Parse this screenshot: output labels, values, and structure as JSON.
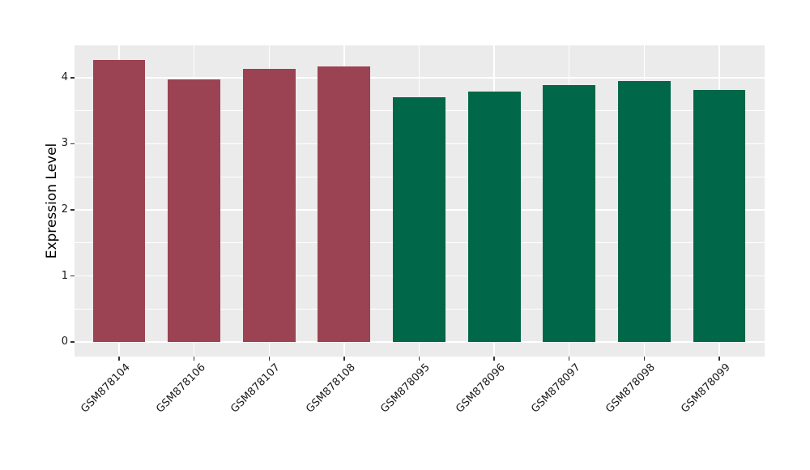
{
  "chart_data": {
    "type": "bar",
    "title": "",
    "xlabel": "",
    "ylabel": "Expression Level",
    "categories": [
      "GSM878104",
      "GSM878106",
      "GSM878107",
      "GSM878108",
      "GSM878095",
      "GSM878096",
      "GSM878097",
      "GSM878098",
      "GSM878099"
    ],
    "values": [
      4.27,
      3.98,
      4.13,
      4.17,
      3.7,
      3.79,
      3.89,
      3.95,
      3.82
    ],
    "bar_colors": [
      "#9B4352",
      "#9B4352",
      "#9B4352",
      "#9B4352",
      "#006748",
      "#006748",
      "#006748",
      "#006748",
      "#006748"
    ],
    "group_colors": {
      "red_group": "#9B4352",
      "green_group": "#006748"
    },
    "ylim": [
      -0.22,
      4.49
    ],
    "yticks": [
      0,
      1,
      2,
      3,
      4
    ],
    "minor_yticks": [
      0.5,
      1.5,
      2.5,
      3.5
    ],
    "bar_width_fraction": 0.7,
    "legend_position": "none",
    "grid": "on",
    "panel_bg": "#EBEBEB",
    "grid_color": "#FFFFFF",
    "tick_mark_color": "#333333",
    "axis_text_color": "#1A1A1A"
  }
}
